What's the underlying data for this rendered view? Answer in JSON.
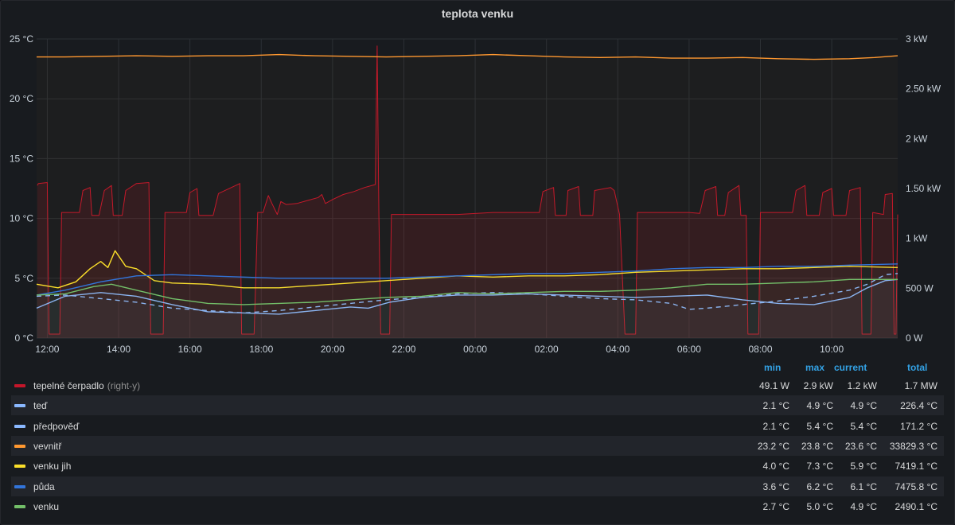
{
  "panel": {
    "title": "teplota venku"
  },
  "chart_data": {
    "type": "line",
    "title": "teplota venku",
    "x_ticks": [
      "12:00",
      "14:00",
      "16:00",
      "18:00",
      "20:00",
      "22:00",
      "00:00",
      "02:00",
      "04:00",
      "06:00",
      "08:00",
      "10:00"
    ],
    "x_range_hours": [
      11.7,
      35.85
    ],
    "y_left": {
      "ticks": [
        "0 °C",
        "5 °C",
        "10 °C",
        "15 °C",
        "20 °C",
        "25 °C"
      ],
      "range": [
        0,
        25
      ],
      "unit": "°C"
    },
    "y_right": {
      "ticks": [
        "0 W",
        "500 W",
        "1 kW",
        "1.50 kW",
        "2 kW",
        "2.50 kW",
        "3 kW"
      ],
      "range": [
        0,
        3000
      ],
      "unit": "W"
    },
    "grid": true,
    "legend_position": "bottom",
    "series": [
      {
        "name": "tepelné čerpadlo",
        "axis": "right",
        "color": "#c4162a",
        "fill": true,
        "style": "solid",
        "points": [
          [
            11.72,
            1530
          ],
          [
            11.75,
            1550
          ],
          [
            12.0,
            1560
          ],
          [
            12.05,
            40
          ],
          [
            12.35,
            40
          ],
          [
            12.4,
            1260
          ],
          [
            12.9,
            1260
          ],
          [
            13.0,
            1480
          ],
          [
            13.2,
            1510
          ],
          [
            13.25,
            1230
          ],
          [
            13.45,
            1230
          ],
          [
            13.6,
            1480
          ],
          [
            13.8,
            1530
          ],
          [
            13.85,
            1230
          ],
          [
            14.1,
            1230
          ],
          [
            14.2,
            1480
          ],
          [
            14.5,
            1550
          ],
          [
            14.85,
            1560
          ],
          [
            14.9,
            40
          ],
          [
            15.25,
            40
          ],
          [
            15.3,
            1260
          ],
          [
            15.9,
            1260
          ],
          [
            16.0,
            1460
          ],
          [
            16.2,
            1500
          ],
          [
            16.25,
            1230
          ],
          [
            16.65,
            1230
          ],
          [
            16.8,
            1450
          ],
          [
            17.4,
            1550
          ],
          [
            17.45,
            40
          ],
          [
            17.8,
            40
          ],
          [
            17.9,
            1260
          ],
          [
            18.05,
            1260
          ],
          [
            18.2,
            1430
          ],
          [
            18.3,
            1350
          ],
          [
            18.45,
            1240
          ],
          [
            18.55,
            1370
          ],
          [
            18.7,
            1340
          ],
          [
            19.0,
            1350
          ],
          [
            19.3,
            1380
          ],
          [
            19.6,
            1410
          ],
          [
            19.7,
            1440
          ],
          [
            19.8,
            1350
          ],
          [
            20.0,
            1390
          ],
          [
            20.3,
            1440
          ],
          [
            20.6,
            1470
          ],
          [
            20.9,
            1510
          ],
          [
            21.2,
            1540
          ],
          [
            21.25,
            2930
          ],
          [
            21.3,
            1230
          ],
          [
            21.35,
            40
          ],
          [
            21.6,
            40
          ],
          [
            21.65,
            1240
          ],
          [
            23.0,
            1240
          ],
          [
            23.5,
            1240
          ],
          [
            24.5,
            1260
          ],
          [
            25.8,
            1260
          ],
          [
            25.9,
            1470
          ],
          [
            26.2,
            1510
          ],
          [
            26.25,
            1230
          ],
          [
            26.55,
            1230
          ],
          [
            26.6,
            1480
          ],
          [
            26.9,
            1520
          ],
          [
            26.95,
            1230
          ],
          [
            27.3,
            1230
          ],
          [
            27.35,
            1480
          ],
          [
            27.8,
            1510
          ],
          [
            27.9,
            1480
          ],
          [
            28.05,
            1240
          ],
          [
            28.2,
            40
          ],
          [
            28.5,
            40
          ],
          [
            28.55,
            1260
          ],
          [
            30.0,
            1260
          ],
          [
            30.3,
            1250
          ],
          [
            30.45,
            1480
          ],
          [
            30.75,
            1520
          ],
          [
            30.8,
            1230
          ],
          [
            31.0,
            1230
          ],
          [
            31.1,
            1460
          ],
          [
            31.4,
            1530
          ],
          [
            31.45,
            1230
          ],
          [
            31.6,
            1230
          ],
          [
            31.65,
            40
          ],
          [
            31.95,
            40
          ],
          [
            32.0,
            1260
          ],
          [
            32.9,
            1260
          ],
          [
            33.0,
            1480
          ],
          [
            33.25,
            1530
          ],
          [
            33.3,
            1230
          ],
          [
            33.65,
            1230
          ],
          [
            33.75,
            1460
          ],
          [
            34.0,
            1500
          ],
          [
            34.05,
            1230
          ],
          [
            34.4,
            1230
          ],
          [
            34.5,
            1480
          ],
          [
            34.8,
            1510
          ],
          [
            34.85,
            40
          ],
          [
            35.1,
            40
          ],
          [
            35.15,
            1260
          ],
          [
            35.45,
            1240
          ],
          [
            35.5,
            1440
          ],
          [
            35.7,
            1450
          ],
          [
            35.75,
            40
          ],
          [
            35.8,
            40
          ],
          [
            35.85,
            1240
          ]
        ]
      },
      {
        "name": "teď",
        "axis": "left",
        "color": "#8ab8ff",
        "style": "solid",
        "points": [
          [
            11.7,
            2.5
          ],
          [
            12.5,
            3.5
          ],
          [
            13.5,
            3.8
          ],
          [
            14.5,
            3.5
          ],
          [
            15.5,
            2.8
          ],
          [
            16.5,
            2.2
          ],
          [
            17.5,
            2.1
          ],
          [
            18.5,
            2.0
          ],
          [
            19.5,
            2.3
          ],
          [
            20.5,
            2.6
          ],
          [
            21.0,
            2.5
          ],
          [
            21.6,
            3.0
          ],
          [
            22.5,
            3.4
          ],
          [
            23.5,
            3.6
          ],
          [
            24.5,
            3.6
          ],
          [
            25.5,
            3.7
          ],
          [
            26.5,
            3.6
          ],
          [
            27.5,
            3.5
          ],
          [
            28.5,
            3.4
          ],
          [
            29.5,
            3.5
          ],
          [
            30.5,
            3.6
          ],
          [
            31.5,
            3.2
          ],
          [
            32.5,
            2.9
          ],
          [
            33.5,
            2.8
          ],
          [
            34.5,
            3.4
          ],
          [
            35.0,
            4.2
          ],
          [
            35.5,
            4.8
          ],
          [
            35.85,
            4.9
          ]
        ]
      },
      {
        "name": "předpověď",
        "axis": "left",
        "color": "#8ab8ff",
        "style": "dashed",
        "points": [
          [
            11.7,
            3.5
          ],
          [
            12.5,
            3.6
          ],
          [
            13.5,
            3.3
          ],
          [
            14.5,
            3.0
          ],
          [
            15.5,
            2.5
          ],
          [
            16.5,
            2.3
          ],
          [
            17.5,
            2.1
          ],
          [
            18.5,
            2.3
          ],
          [
            19.5,
            2.6
          ],
          [
            20.5,
            2.9
          ],
          [
            21.5,
            3.2
          ],
          [
            22.5,
            3.4
          ],
          [
            23.5,
            3.7
          ],
          [
            24.5,
            3.8
          ],
          [
            25.5,
            3.7
          ],
          [
            26.5,
            3.5
          ],
          [
            27.5,
            3.3
          ],
          [
            28.5,
            3.2
          ],
          [
            29.5,
            2.9
          ],
          [
            30.0,
            2.4
          ],
          [
            30.5,
            2.5
          ],
          [
            31.5,
            2.8
          ],
          [
            32.5,
            3.1
          ],
          [
            33.5,
            3.5
          ],
          [
            34.5,
            4.0
          ],
          [
            35.0,
            4.5
          ],
          [
            35.5,
            5.3
          ],
          [
            35.85,
            5.4
          ]
        ]
      },
      {
        "name": "vevnitř",
        "axis": "left",
        "color": "#ff9830",
        "style": "solid",
        "points": [
          [
            11.7,
            23.5
          ],
          [
            12.5,
            23.5
          ],
          [
            13.5,
            23.55
          ],
          [
            14.5,
            23.6
          ],
          [
            15.5,
            23.55
          ],
          [
            16.5,
            23.6
          ],
          [
            17.5,
            23.6
          ],
          [
            18.5,
            23.7
          ],
          [
            19.5,
            23.6
          ],
          [
            20.5,
            23.55
          ],
          [
            21.5,
            23.5
          ],
          [
            22.5,
            23.55
          ],
          [
            23.5,
            23.6
          ],
          [
            24.5,
            23.7
          ],
          [
            25.5,
            23.6
          ],
          [
            26.5,
            23.5
          ],
          [
            27.5,
            23.45
          ],
          [
            28.5,
            23.5
          ],
          [
            29.5,
            23.4
          ],
          [
            30.5,
            23.4
          ],
          [
            31.5,
            23.45
          ],
          [
            32.5,
            23.35
          ],
          [
            33.5,
            23.3
          ],
          [
            34.5,
            23.35
          ],
          [
            35.2,
            23.45
          ],
          [
            35.85,
            23.6
          ]
        ]
      },
      {
        "name": "venku jih",
        "axis": "left",
        "color": "#fade2a",
        "style": "solid",
        "points": [
          [
            11.7,
            4.5
          ],
          [
            12.3,
            4.2
          ],
          [
            12.8,
            4.7
          ],
          [
            13.2,
            5.8
          ],
          [
            13.5,
            6.4
          ],
          [
            13.7,
            5.9
          ],
          [
            13.9,
            7.3
          ],
          [
            14.2,
            6.0
          ],
          [
            14.5,
            5.8
          ],
          [
            15.0,
            4.8
          ],
          [
            15.5,
            4.6
          ],
          [
            16.5,
            4.5
          ],
          [
            17.5,
            4.2
          ],
          [
            18.5,
            4.2
          ],
          [
            19.5,
            4.4
          ],
          [
            20.5,
            4.6
          ],
          [
            21.5,
            4.8
          ],
          [
            22.5,
            5.0
          ],
          [
            23.5,
            5.2
          ],
          [
            24.5,
            5.1
          ],
          [
            25.5,
            5.2
          ],
          [
            26.5,
            5.2
          ],
          [
            27.5,
            5.3
          ],
          [
            28.5,
            5.5
          ],
          [
            29.5,
            5.6
          ],
          [
            30.5,
            5.7
          ],
          [
            31.5,
            5.8
          ],
          [
            32.5,
            5.8
          ],
          [
            33.5,
            5.9
          ],
          [
            34.5,
            6.0
          ],
          [
            35.85,
            5.9
          ]
        ]
      },
      {
        "name": "půda",
        "axis": "left",
        "color": "#3274d9",
        "style": "solid",
        "points": [
          [
            11.7,
            3.6
          ],
          [
            12.5,
            4.0
          ],
          [
            13.5,
            4.7
          ],
          [
            14.5,
            5.2
          ],
          [
            15.5,
            5.3
          ],
          [
            16.5,
            5.2
          ],
          [
            17.5,
            5.1
          ],
          [
            18.5,
            5.0
          ],
          [
            19.5,
            5.0
          ],
          [
            20.5,
            5.0
          ],
          [
            21.5,
            5.0
          ],
          [
            22.5,
            5.1
          ],
          [
            23.5,
            5.2
          ],
          [
            24.5,
            5.3
          ],
          [
            25.5,
            5.4
          ],
          [
            26.5,
            5.4
          ],
          [
            27.5,
            5.5
          ],
          [
            28.5,
            5.6
          ],
          [
            29.5,
            5.8
          ],
          [
            30.5,
            5.9
          ],
          [
            31.5,
            5.9
          ],
          [
            32.5,
            6.0
          ],
          [
            33.5,
            6.0
          ],
          [
            34.5,
            6.1
          ],
          [
            35.85,
            6.2
          ]
        ]
      },
      {
        "name": "venku",
        "axis": "left",
        "color": "#73bf69",
        "style": "solid",
        "points": [
          [
            11.7,
            3.6
          ],
          [
            12.5,
            3.7
          ],
          [
            13.3,
            4.3
          ],
          [
            13.8,
            4.5
          ],
          [
            14.5,
            4.0
          ],
          [
            15.5,
            3.3
          ],
          [
            16.5,
            2.9
          ],
          [
            17.5,
            2.8
          ],
          [
            18.5,
            2.9
          ],
          [
            19.5,
            3.0
          ],
          [
            20.5,
            3.2
          ],
          [
            21.5,
            3.4
          ],
          [
            22.5,
            3.5
          ],
          [
            23.5,
            3.8
          ],
          [
            24.5,
            3.7
          ],
          [
            25.5,
            3.8
          ],
          [
            26.5,
            3.9
          ],
          [
            27.5,
            3.9
          ],
          [
            28.5,
            4.0
          ],
          [
            29.5,
            4.2
          ],
          [
            30.5,
            4.5
          ],
          [
            31.5,
            4.5
          ],
          [
            32.5,
            4.6
          ],
          [
            33.5,
            4.7
          ],
          [
            34.5,
            4.9
          ],
          [
            35.2,
            4.9
          ],
          [
            35.85,
            4.9
          ]
        ]
      }
    ]
  },
  "legend": {
    "headers": {
      "min": "min",
      "max": "max",
      "current": "current",
      "total": "total"
    },
    "rows": [
      {
        "name": "tepelné čerpadlo",
        "suffix": "(right-y)",
        "color": "#c4162a",
        "min": "49.1 W",
        "max": "2.9 kW",
        "current": "1.2 kW",
        "total": "1.7 MW"
      },
      {
        "name": "teď",
        "suffix": "",
        "color": "#8ab8ff",
        "min": "2.1 °C",
        "max": "4.9 °C",
        "current": "4.9 °C",
        "total": "226.4 °C"
      },
      {
        "name": "předpověď",
        "suffix": "",
        "color": "#8ab8ff",
        "min": "2.1 °C",
        "max": "5.4 °C",
        "current": "5.4 °C",
        "total": "171.2 °C"
      },
      {
        "name": "vevnitř",
        "suffix": "",
        "color": "#ff9830",
        "min": "23.2 °C",
        "max": "23.8 °C",
        "current": "23.6 °C",
        "total": "33829.3 °C"
      },
      {
        "name": "venku jih",
        "suffix": "",
        "color": "#fade2a",
        "min": "4.0 °C",
        "max": "7.3 °C",
        "current": "5.9 °C",
        "total": "7419.1 °C"
      },
      {
        "name": "půda",
        "suffix": "",
        "color": "#3274d9",
        "min": "3.6 °C",
        "max": "6.2 °C",
        "current": "6.1 °C",
        "total": "7475.8 °C"
      },
      {
        "name": "venku",
        "suffix": "",
        "color": "#73bf69",
        "min": "2.7 °C",
        "max": "5.0 °C",
        "current": "4.9 °C",
        "total": "2490.1 °C"
      }
    ]
  }
}
